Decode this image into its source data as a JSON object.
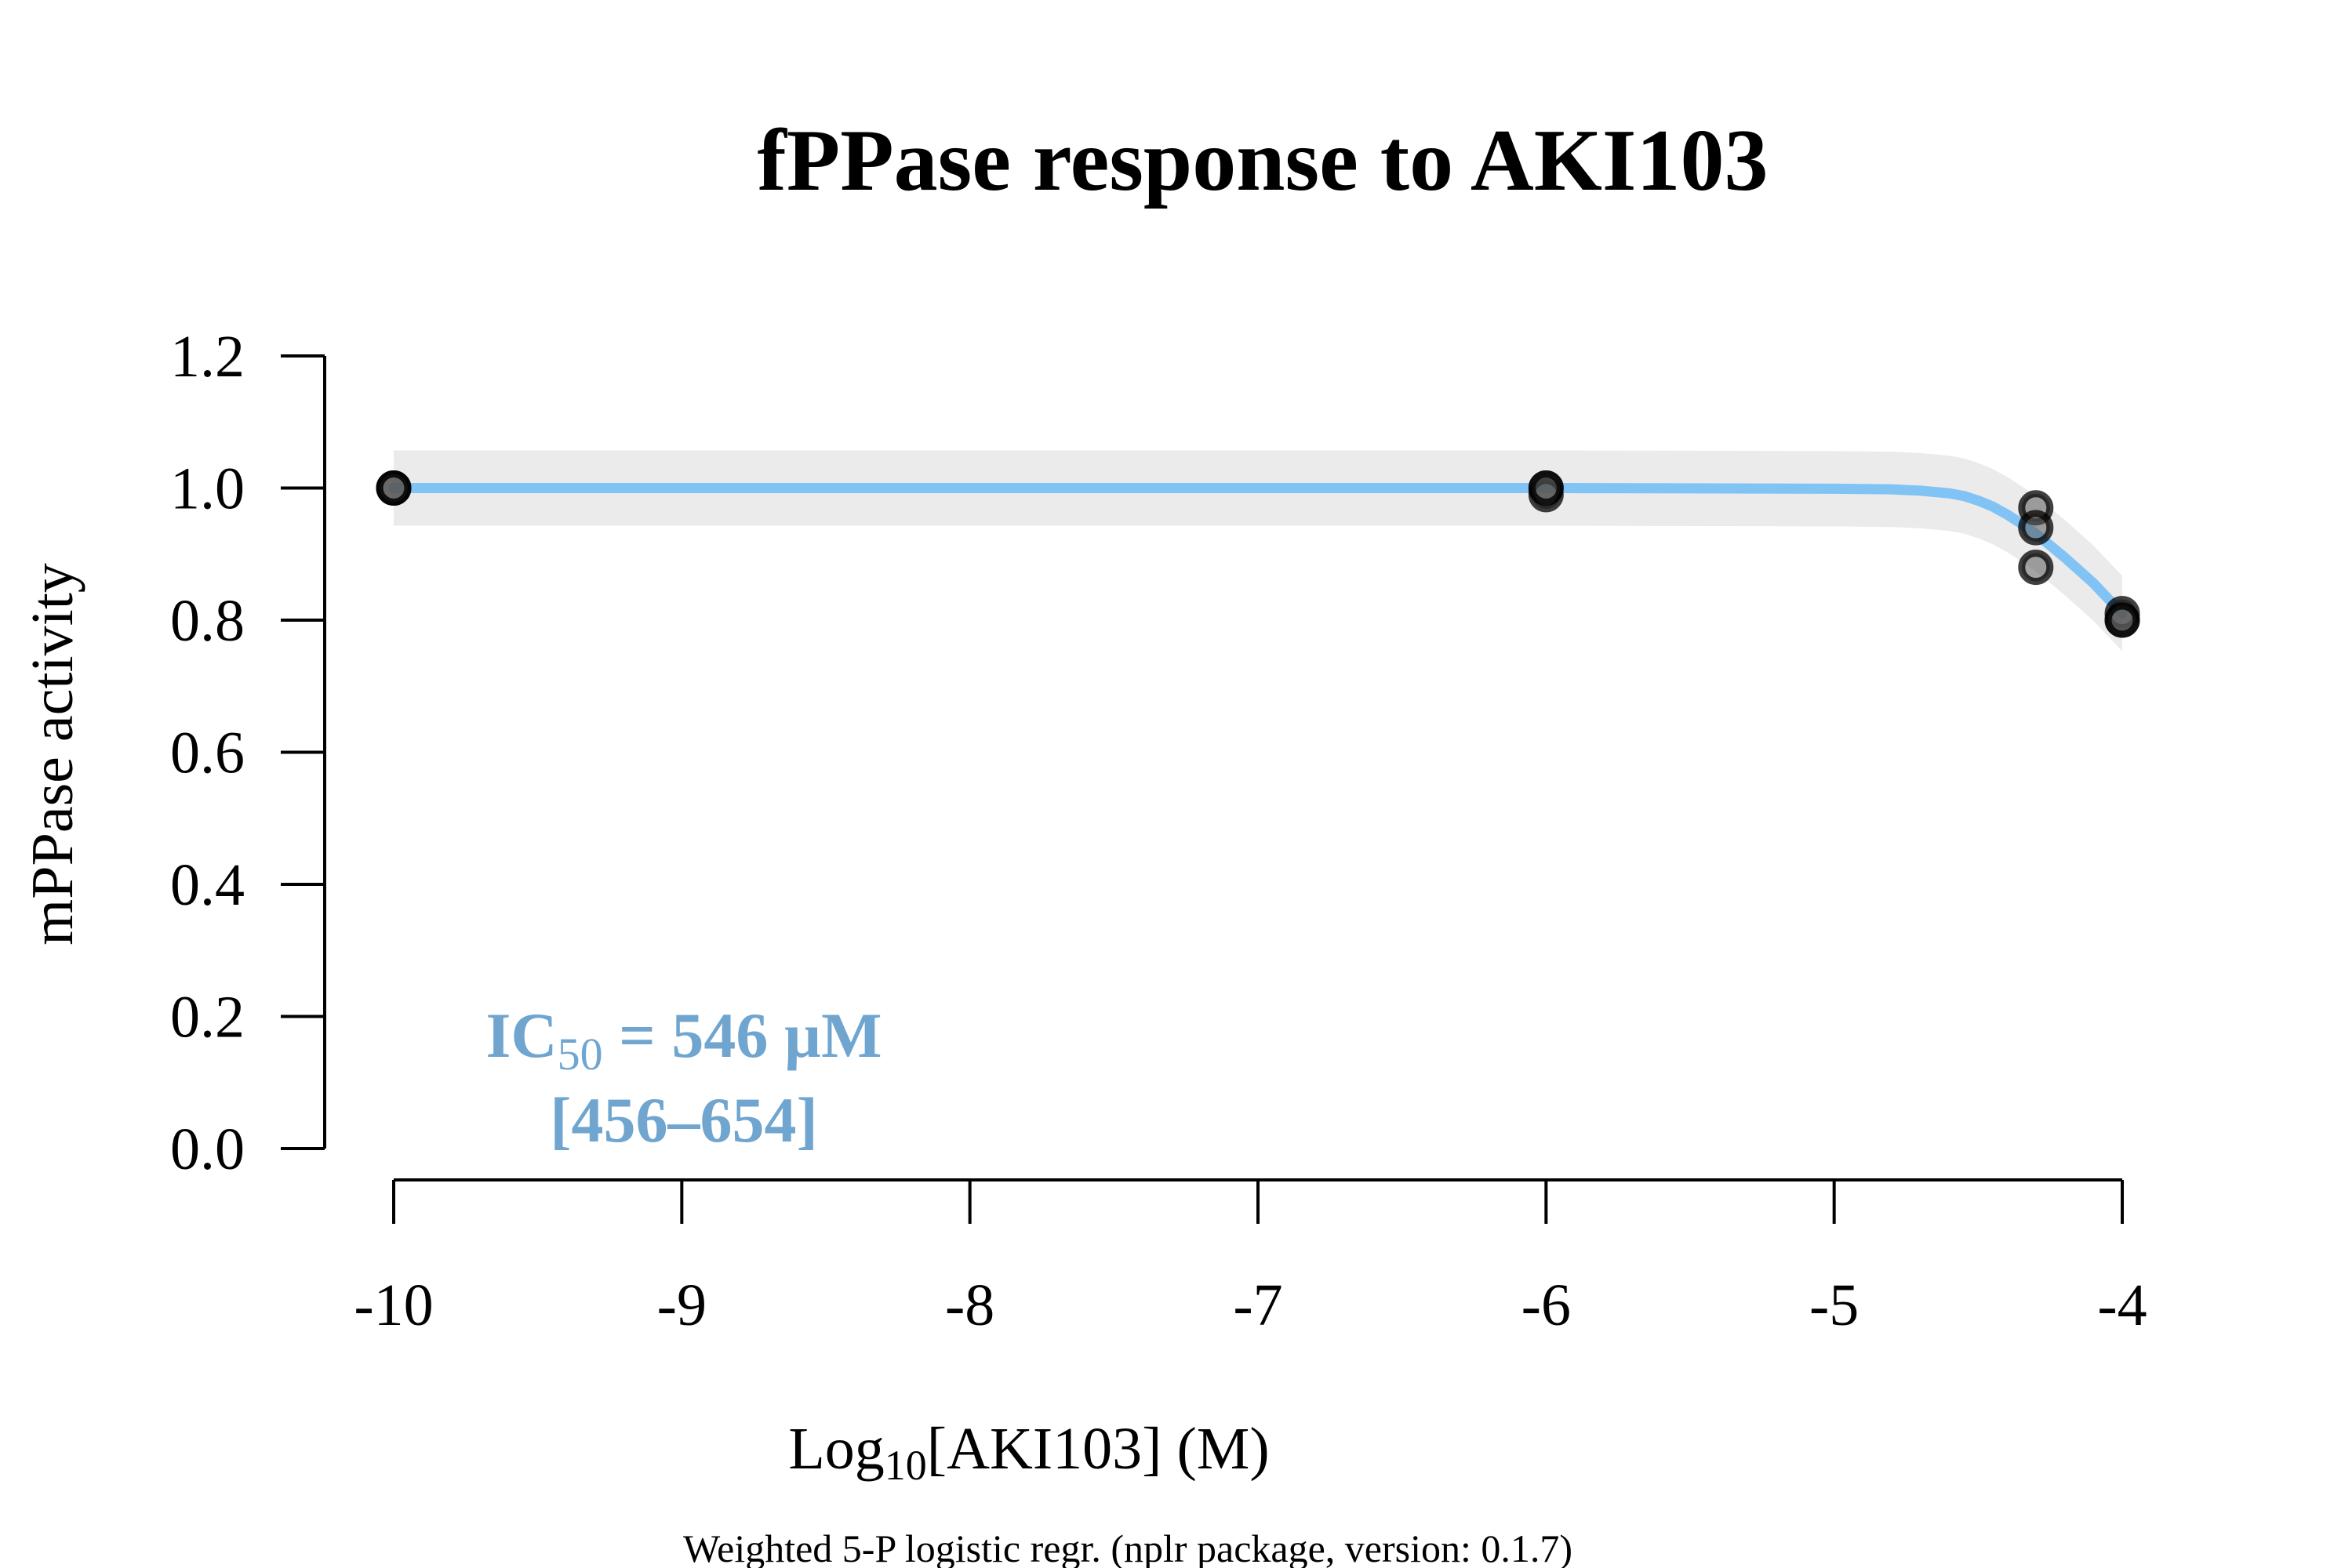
{
  "chart_data": {
    "type": "scatter",
    "title": "fPPase response to AKI103",
    "xlabel": {
      "prefix": "Log",
      "sub": "10",
      "suffix": "[AKI103] (M)"
    },
    "ylabel": "mPPase activity",
    "footnote": "Weighted 5-P logistic regr. (nplr package, version: 0.1.7)",
    "xlim": [
      -10,
      -4
    ],
    "ylim": [
      0,
      1.2
    ],
    "x_ticks": [
      -10,
      -9,
      -8,
      -7,
      -6,
      -5,
      -4
    ],
    "x_tick_labels": [
      "-10",
      "-9",
      "-8",
      "-7",
      "-6",
      "-5",
      "-4"
    ],
    "y_ticks": [
      0,
      0.2,
      0.4,
      0.6,
      0.8,
      1.0,
      1.2
    ],
    "y_tick_labels": [
      "0.0",
      "0.2",
      "0.4",
      "0.6",
      "0.8",
      "1.0",
      "1.2"
    ],
    "grid": false,
    "series": [
      {
        "type": "scatter",
        "x": [
          -10,
          -10,
          -10,
          -6,
          -6,
          -6,
          -4.3,
          -4.3,
          -4.3,
          -4,
          -4,
          -4
        ],
        "y": [
          1.0,
          1.0,
          1.0,
          1.0,
          0.99,
          1.0,
          0.97,
          0.94,
          0.88,
          0.81,
          0.8,
          0.8
        ]
      }
    ],
    "fit_curve": {
      "x": [
        -10,
        -9,
        -8,
        -7,
        -6,
        -5,
        -4.8,
        -4.7,
        -4.6,
        -4.55,
        -4.5,
        -4.45,
        -4.4,
        -4.35,
        -4.3,
        -4.2,
        -4.1,
        -4.0
      ],
      "y": [
        1.0,
        1.0,
        1.0,
        1.0,
        1.0,
        0.999,
        0.998,
        0.996,
        0.992,
        0.988,
        0.981,
        0.972,
        0.96,
        0.946,
        0.931,
        0.895,
        0.856,
        0.81
      ],
      "color": "#82c3f5"
    },
    "confidence_band": {
      "half_width": 0.057,
      "color": "#ebebeb"
    },
    "annotation": {
      "prefix": "IC",
      "sub": "50",
      "suffix": " = 546 µM",
      "interval": "[456–654]",
      "color": "#6fa5cf"
    },
    "point_color": "#000000"
  }
}
